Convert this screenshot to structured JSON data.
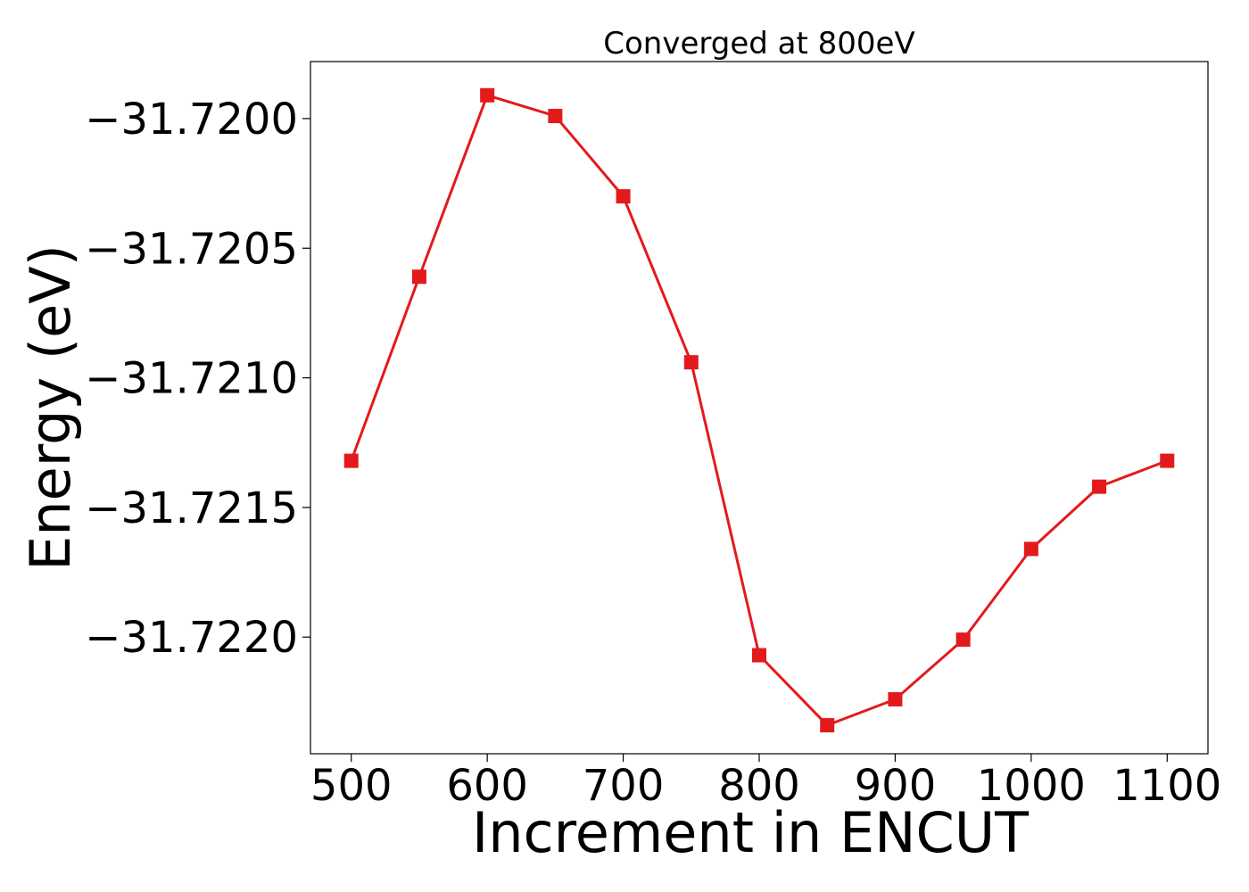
{
  "chart_data": {
    "type": "line",
    "title": "Converged at 800eV",
    "xlabel": "Increment in ENCUT",
    "ylabel": "Energy (eV)",
    "xlim": [
      470,
      1130
    ],
    "ylim": [
      -31.72245,
      -31.71978
    ],
    "xticks": [
      500,
      600,
      700,
      800,
      900,
      1000,
      1100
    ],
    "yticks": [
      -31.72,
      -31.7205,
      -31.721,
      -31.7215,
      -31.722
    ],
    "ytick_labels": [
      "−31.7200",
      "−31.7205",
      "−31.7210",
      "−31.7215",
      "−31.7220"
    ],
    "grid": false,
    "series": [
      {
        "marker": "square",
        "color": "#e31a1c",
        "x": [
          500,
          550,
          600,
          650,
          700,
          750,
          800,
          850,
          900,
          950,
          1000,
          1050,
          1100
        ],
        "y": [
          -31.72132,
          -31.72061,
          -31.71991,
          -31.71999,
          -31.7203,
          -31.72094,
          -31.72207,
          -31.72234,
          -31.72224,
          -31.72201,
          -31.72166,
          -31.72142,
          -31.72132
        ]
      }
    ]
  }
}
